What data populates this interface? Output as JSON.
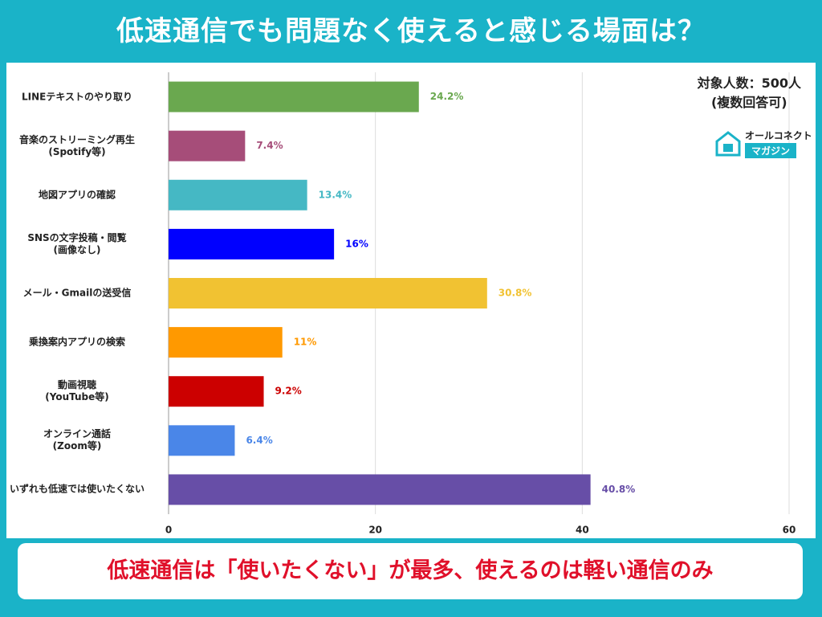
{
  "chart_data": {
    "type": "bar",
    "orientation": "horizontal",
    "title": "低速通信でも問題なく使えると感じる場面は？",
    "note": "対象人数：500人\n(複数回答可)",
    "brand": [
      "オールコネクト",
      "マガジン"
    ],
    "categories": [
      "LINEテキストのやり取り",
      "音楽のストリーミング再生\n(Spotify等)",
      "地図アプリの確認",
      "SNSの文字投稿・閲覧\n(画像なし)",
      "メール・Gmailの送受信",
      "乗換案内アプリの検索",
      "動画視聴\n(YouTube等)",
      "オンライン通話\n(Zoom等)",
      "いずれも低速では使いたくない"
    ],
    "values": [
      24.2,
      7.4,
      13.4,
      16,
      30.8,
      11,
      9.2,
      6.4,
      40.8
    ],
    "value_labels": [
      "24.2%",
      "7.4%",
      "13.4%",
      "16%",
      "30.8%",
      "11%",
      "9.2%",
      "6.4%",
      "40.8%"
    ],
    "colors": [
      "#6aa84f",
      "#a64d79",
      "#45b8c4",
      "#0000ff",
      "#f1c232",
      "#ff9900",
      "#cc0000",
      "#4a86e8",
      "#674ea7"
    ],
    "xlim": [
      0,
      60
    ],
    "xticks": [
      0,
      20,
      40,
      60
    ],
    "grid": true,
    "footer": "低速通信は「使いたくない」が最多、使えるのは軽い通信のみ"
  }
}
